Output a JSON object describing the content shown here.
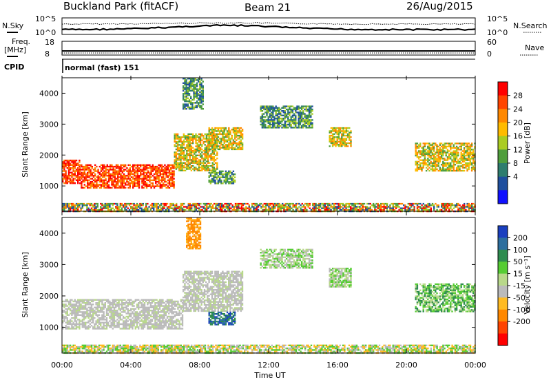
{
  "header": {
    "station": "Buckland Park (fitACF)",
    "beam": "Beam 21",
    "date": "26/Aug/2015"
  },
  "noise_panel": {
    "left_label": "N.Sky",
    "right_label": "N.Search",
    "left_ticks": [
      "10^5",
      "10^0"
    ],
    "right_ticks": [
      "10^5",
      "10^0"
    ]
  },
  "freq_panel": {
    "left_label_1": "Freq.",
    "left_label_2": "[MHz]",
    "right_label": "Nave",
    "left_ticks": [
      "18",
      "8"
    ],
    "right_ticks": [
      "60",
      "0"
    ]
  },
  "cpid_panel": {
    "label": "CPID",
    "mode_text": "normal (fast) 151"
  },
  "axes": {
    "x_label": "Time UT",
    "x_ticks": [
      "00:00",
      "04:00",
      "08:00",
      "12:00",
      "16:00",
      "20:00",
      "00:00"
    ],
    "y_label": "Slant Range [km]",
    "y_ticks": [
      "4000",
      "3000",
      "2000",
      "1000"
    ]
  },
  "power_colorbar": {
    "label": "Power [dB]",
    "ticks": [
      "28",
      "24",
      "20",
      "16",
      "12",
      "8",
      "4"
    ],
    "colors": [
      "#ff0000",
      "#ff4400",
      "#ff8800",
      "#ffbb00",
      "#aacc22",
      "#4f9e3c",
      "#2e7d6e",
      "#1f4f9e",
      "#1010ff"
    ]
  },
  "velocity_colorbar": {
    "label": "Velocity [m s⁻¹]",
    "ticks": [
      "200",
      "100",
      "50",
      "15",
      "-15",
      "-50",
      "-100",
      "-200"
    ],
    "colors": [
      "#1a3fbf",
      "#2c6e9e",
      "#2e8c4f",
      "#55cc33",
      "#b8d88a",
      "#bbbbbb",
      "#ffbb22",
      "#ff8800",
      "#ff4400",
      "#ff0000"
    ]
  },
  "chart_data": {
    "type": "heatmap",
    "x_range_hours": [
      0,
      24
    ],
    "y_range_km": [
      180,
      4500
    ],
    "power_regions": [
      {
        "t0": 0.0,
        "t1": 1.0,
        "r0": 1100,
        "r1": 1850,
        "level": "high"
      },
      {
        "t0": 1.0,
        "t1": 6.5,
        "r0": 950,
        "r1": 1700,
        "level": "high"
      },
      {
        "t0": 6.5,
        "t1": 9.0,
        "r0": 1500,
        "r1": 2700,
        "level": "mid"
      },
      {
        "t0": 8.5,
        "t1": 10.5,
        "r0": 2200,
        "r1": 2900,
        "level": "mid"
      },
      {
        "t0": 7.0,
        "t1": 8.2,
        "r0": 3500,
        "r1": 4500,
        "level": "low"
      },
      {
        "t0": 8.5,
        "t1": 10.0,
        "r0": 1100,
        "r1": 1500,
        "level": "low"
      },
      {
        "t0": 11.5,
        "t1": 14.5,
        "r0": 2900,
        "r1": 3600,
        "level": "low"
      },
      {
        "t0": 15.5,
        "t1": 16.8,
        "r0": 2300,
        "r1": 2900,
        "level": "mid"
      },
      {
        "t0": 20.5,
        "t1": 24.0,
        "r0": 1500,
        "r1": 2400,
        "level": "mid"
      },
      {
        "t0": 0.0,
        "t1": 24.0,
        "r0": 180,
        "r1": 450,
        "level": "ground"
      }
    ],
    "velocity_regions": [
      {
        "t0": 0.0,
        "t1": 7.0,
        "r0": 950,
        "r1": 1900,
        "velocity": "ground"
      },
      {
        "t0": 7.0,
        "t1": 10.5,
        "r0": 1500,
        "r1": 2800,
        "velocity": "ground"
      },
      {
        "t0": 7.2,
        "t1": 8.0,
        "r0": 3500,
        "r1": 4500,
        "velocity": "-50"
      },
      {
        "t0": 8.5,
        "t1": 10.0,
        "r0": 1100,
        "r1": 1500,
        "velocity": "100"
      },
      {
        "t0": 11.5,
        "t1": 14.5,
        "r0": 2900,
        "r1": 3500,
        "velocity": "15"
      },
      {
        "t0": 15.5,
        "t1": 16.8,
        "r0": 2300,
        "r1": 2900,
        "velocity": "15"
      },
      {
        "t0": 20.5,
        "t1": 24.0,
        "r0": 1500,
        "r1": 2400,
        "velocity": "50"
      },
      {
        "t0": 0.0,
        "t1": 24.0,
        "r0": 180,
        "r1": 450,
        "velocity": "-15"
      }
    ]
  }
}
